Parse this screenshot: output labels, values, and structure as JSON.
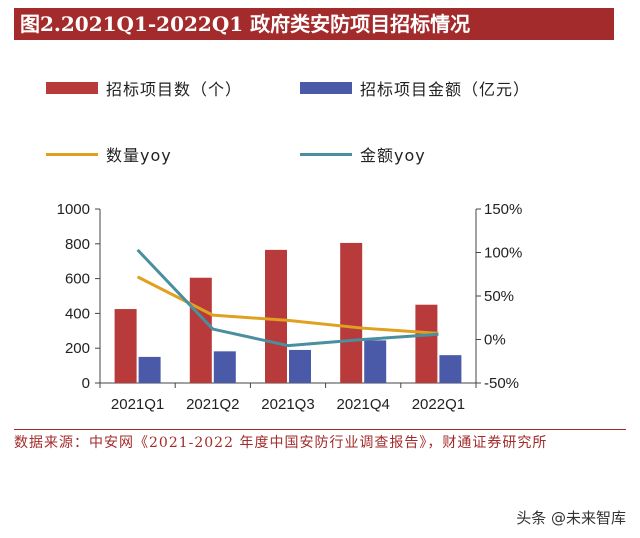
{
  "title": "图2.2021Q1-2022Q1 政府类安防项目招标情况",
  "legend": {
    "bars_count": "招标项目数（个）",
    "bars_amount": "招标项目金额（亿元）",
    "line_count": "数量yoy",
    "line_amount": "金额yoy"
  },
  "colors": {
    "count_bar": "#b83a3a",
    "amount_bar": "#4a5aa8",
    "count_line": "#e0a020",
    "amount_line": "#4a8fa0",
    "accent": "#a32b2b"
  },
  "chart_data": {
    "type": "bar",
    "categories": [
      "2021Q1",
      "2021Q2",
      "2021Q3",
      "2021Q4",
      "2022Q1"
    ],
    "series": [
      {
        "name": "招标项目数（个）",
        "type": "bar",
        "axis": "left",
        "values": [
          425,
          605,
          765,
          805,
          450
        ]
      },
      {
        "name": "招标项目金额（亿元）",
        "type": "bar",
        "axis": "left",
        "values": [
          150,
          182,
          190,
          245,
          160
        ]
      },
      {
        "name": "数量yoy",
        "type": "line",
        "axis": "right",
        "values": [
          72,
          28,
          22,
          13,
          7
        ]
      },
      {
        "name": "金额yoy",
        "type": "line",
        "axis": "right",
        "values": [
          103,
          12,
          -7,
          0,
          6
        ]
      }
    ],
    "left_axis": {
      "ylim": [
        0,
        1000
      ],
      "ticks": [
        "0",
        "200",
        "400",
        "600",
        "800",
        "1000"
      ]
    },
    "right_axis": {
      "ylim": [
        -50,
        150
      ],
      "ticks": [
        "-50%",
        "0%",
        "50%",
        "100%",
        "150%"
      ]
    },
    "grid": false,
    "legend_position": "top"
  },
  "source": "数据来源：中安网《2021-2022 年度中国安防行业调查报告》，财通证券研究所",
  "watermark": "头条 @未来智库"
}
